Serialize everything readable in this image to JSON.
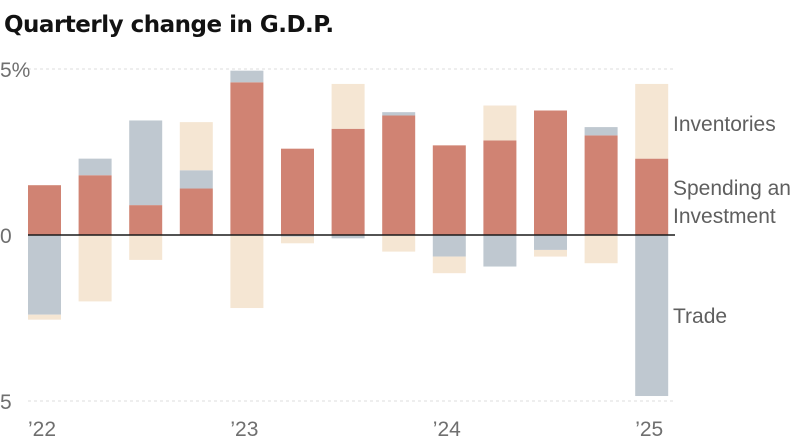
{
  "chart_data": {
    "type": "bar",
    "stacked": true,
    "title": "Quarterly change in G.D.P.",
    "ylim": [
      -5,
      5
    ],
    "y_ticks": [
      {
        "value": 5,
        "label": "5%"
      },
      {
        "value": 0,
        "label": "0"
      },
      {
        "value": -5,
        "label": "5"
      }
    ],
    "x_ticks": [
      {
        "quarter_index": 0,
        "label": "’22"
      },
      {
        "quarter_index": 4,
        "label": "’23"
      },
      {
        "quarter_index": 8,
        "label": "’24"
      },
      {
        "quarter_index": 12,
        "label": "’25"
      }
    ],
    "grid": true,
    "series": [
      {
        "name": "Spending and Investment",
        "color": "#d08373",
        "values": [
          1.5,
          1.8,
          0.9,
          1.4,
          4.6,
          2.6,
          3.2,
          3.6,
          2.7,
          2.85,
          3.75,
          3.0,
          2.3
        ]
      },
      {
        "name": "Trade",
        "color": "#bfc8d0",
        "values": [
          -2.4,
          0.5,
          2.55,
          0.55,
          0.35,
          -0.05,
          -0.1,
          0.1,
          -0.65,
          -0.95,
          -0.45,
          0.25,
          -4.85
        ]
      },
      {
        "name": "Inventories",
        "color": "#f5e6d3",
        "values": [
          -0.15,
          -2.0,
          -0.75,
          1.45,
          -2.2,
          -0.2,
          1.35,
          -0.5,
          -0.5,
          1.05,
          -0.2,
          -0.85,
          2.25
        ]
      }
    ],
    "legend_labels": [
      {
        "key": "inventories",
        "text": "Inventories"
      },
      {
        "key": "spending_line1",
        "text": "Spending an"
      },
      {
        "key": "spending_line2",
        "text": "Investment"
      },
      {
        "key": "trade",
        "text": "Trade"
      }
    ]
  }
}
